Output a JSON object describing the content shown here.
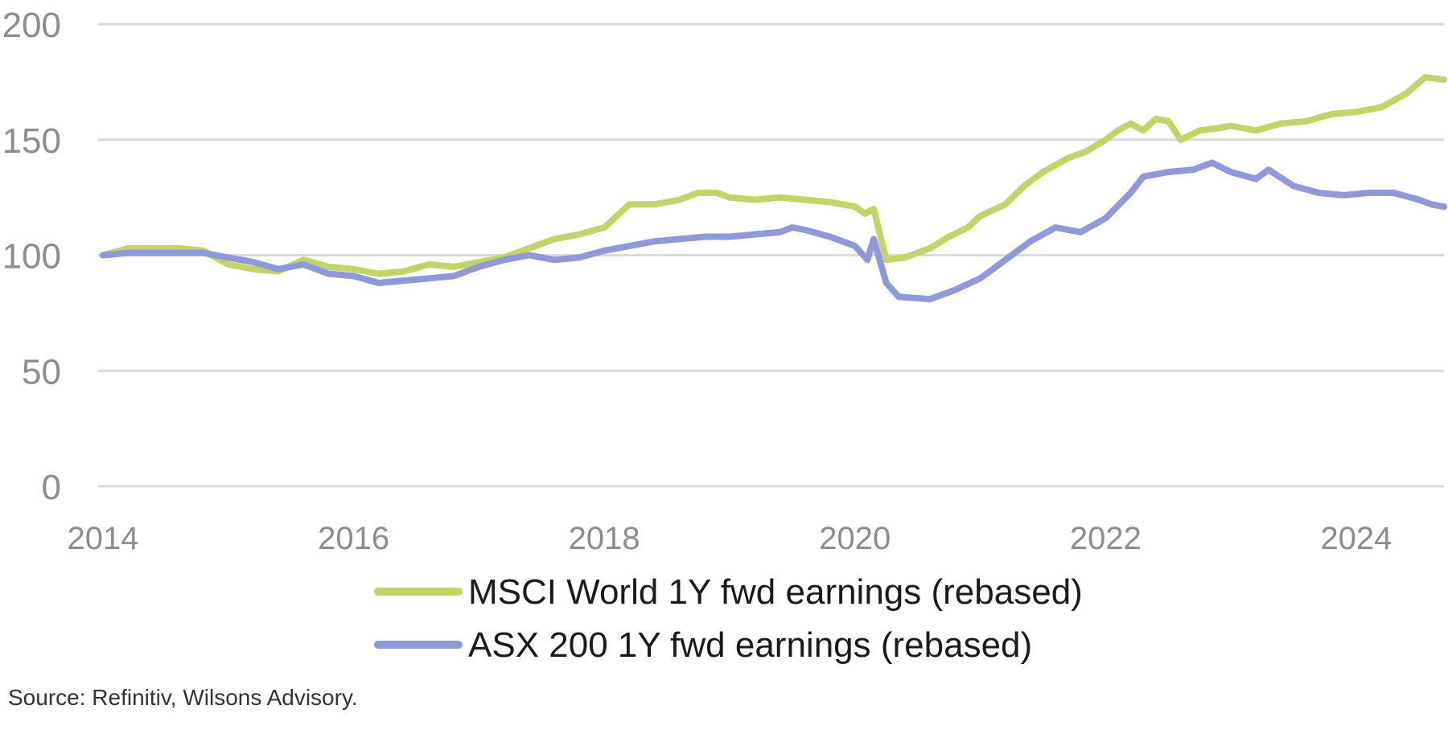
{
  "chart_data": {
    "type": "line",
    "title": "",
    "xlabel": "",
    "ylabel": "",
    "xlim": [
      2014.0,
      2024.7
    ],
    "ylim": [
      0,
      200
    ],
    "yticks": [
      0,
      50,
      100,
      150,
      200
    ],
    "ytick_labels": [
      "0",
      "50",
      "100",
      "150",
      "200"
    ],
    "xticks": [
      2014,
      2016,
      2018,
      2020,
      2022,
      2024
    ],
    "xtick_labels": [
      "2014",
      "2016",
      "2018",
      "2020",
      "2022",
      "2024"
    ],
    "grid": true,
    "legend_position": "bottom",
    "series": [
      {
        "name": "MSCI World 1Y fwd earnings (rebased)",
        "color": "#c2d467",
        "points": [
          [
            2014.0,
            100
          ],
          [
            2014.2,
            103
          ],
          [
            2014.4,
            103
          ],
          [
            2014.6,
            103
          ],
          [
            2014.8,
            102
          ],
          [
            2015.0,
            96
          ],
          [
            2015.2,
            94
          ],
          [
            2015.4,
            93
          ],
          [
            2015.6,
            98
          ],
          [
            2015.8,
            95
          ],
          [
            2016.0,
            94
          ],
          [
            2016.2,
            92
          ],
          [
            2016.4,
            93
          ],
          [
            2016.6,
            96
          ],
          [
            2016.8,
            95
          ],
          [
            2017.0,
            97
          ],
          [
            2017.2,
            99
          ],
          [
            2017.4,
            103
          ],
          [
            2017.6,
            107
          ],
          [
            2017.8,
            109
          ],
          [
            2018.0,
            112
          ],
          [
            2018.2,
            122
          ],
          [
            2018.4,
            122
          ],
          [
            2018.6,
            124
          ],
          [
            2018.75,
            127
          ],
          [
            2018.9,
            127
          ],
          [
            2019.0,
            125
          ],
          [
            2019.2,
            124
          ],
          [
            2019.4,
            125
          ],
          [
            2019.6,
            124
          ],
          [
            2019.8,
            123
          ],
          [
            2020.0,
            121
          ],
          [
            2020.08,
            118
          ],
          [
            2020.15,
            120
          ],
          [
            2020.25,
            98
          ],
          [
            2020.4,
            99
          ],
          [
            2020.6,
            103
          ],
          [
            2020.75,
            108
          ],
          [
            2020.9,
            112
          ],
          [
            2021.0,
            117
          ],
          [
            2021.2,
            122
          ],
          [
            2021.35,
            130
          ],
          [
            2021.5,
            136
          ],
          [
            2021.7,
            142
          ],
          [
            2021.85,
            145
          ],
          [
            2022.0,
            150
          ],
          [
            2022.1,
            154
          ],
          [
            2022.2,
            157
          ],
          [
            2022.3,
            154
          ],
          [
            2022.4,
            159
          ],
          [
            2022.5,
            158
          ],
          [
            2022.6,
            150
          ],
          [
            2022.75,
            154
          ],
          [
            2022.9,
            155
          ],
          [
            2023.0,
            156
          ],
          [
            2023.2,
            154
          ],
          [
            2023.4,
            157
          ],
          [
            2023.6,
            158
          ],
          [
            2023.8,
            161
          ],
          [
            2024.0,
            162
          ],
          [
            2024.2,
            164
          ],
          [
            2024.4,
            170
          ],
          [
            2024.55,
            177
          ],
          [
            2024.7,
            176
          ]
        ]
      },
      {
        "name": "ASX 200 1Y fwd earnings (rebased)",
        "color": "#8f99d9",
        "points": [
          [
            2014.0,
            100
          ],
          [
            2014.2,
            101
          ],
          [
            2014.4,
            101
          ],
          [
            2014.6,
            101
          ],
          [
            2014.8,
            101
          ],
          [
            2015.0,
            99
          ],
          [
            2015.2,
            97
          ],
          [
            2015.4,
            94
          ],
          [
            2015.6,
            96
          ],
          [
            2015.8,
            92
          ],
          [
            2016.0,
            91
          ],
          [
            2016.2,
            88
          ],
          [
            2016.4,
            89
          ],
          [
            2016.6,
            90
          ],
          [
            2016.8,
            91
          ],
          [
            2017.0,
            95
          ],
          [
            2017.2,
            98
          ],
          [
            2017.4,
            100
          ],
          [
            2017.6,
            98
          ],
          [
            2017.8,
            99
          ],
          [
            2018.0,
            102
          ],
          [
            2018.2,
            104
          ],
          [
            2018.4,
            106
          ],
          [
            2018.6,
            107
          ],
          [
            2018.8,
            108
          ],
          [
            2019.0,
            108
          ],
          [
            2019.2,
            109
          ],
          [
            2019.4,
            110
          ],
          [
            2019.5,
            112
          ],
          [
            2019.6,
            111
          ],
          [
            2019.8,
            108
          ],
          [
            2020.0,
            104
          ],
          [
            2020.1,
            98
          ],
          [
            2020.15,
            107
          ],
          [
            2020.25,
            88
          ],
          [
            2020.35,
            82
          ],
          [
            2020.6,
            81
          ],
          [
            2020.8,
            85
          ],
          [
            2021.0,
            90
          ],
          [
            2021.2,
            98
          ],
          [
            2021.4,
            106
          ],
          [
            2021.6,
            112
          ],
          [
            2021.8,
            110
          ],
          [
            2022.0,
            116
          ],
          [
            2022.2,
            127
          ],
          [
            2022.3,
            134
          ],
          [
            2022.5,
            136
          ],
          [
            2022.7,
            137
          ],
          [
            2022.85,
            140
          ],
          [
            2023.0,
            136
          ],
          [
            2023.2,
            133
          ],
          [
            2023.3,
            137
          ],
          [
            2023.5,
            130
          ],
          [
            2023.7,
            127
          ],
          [
            2023.9,
            126
          ],
          [
            2024.1,
            127
          ],
          [
            2024.3,
            127
          ],
          [
            2024.5,
            124
          ],
          [
            2024.6,
            122
          ],
          [
            2024.7,
            121
          ]
        ]
      }
    ]
  },
  "source": "Source: Refinitiv, Wilsons Advisory."
}
